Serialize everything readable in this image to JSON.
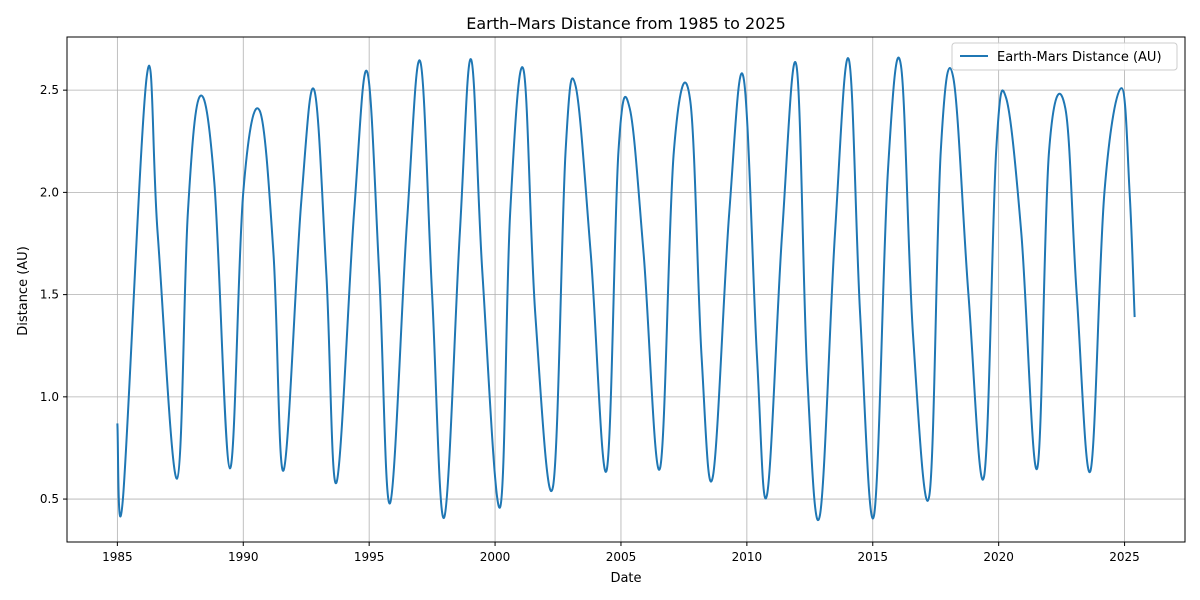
{
  "chart_data": {
    "type": "line",
    "title": "Earth–Mars Distance from 1985 to 2025",
    "xlabel": "Date",
    "ylabel": "Distance (AU)",
    "xlim": [
      1983.0,
      2027.4
    ],
    "ylim": [
      0.29,
      2.76
    ],
    "x_ticks": [
      1985,
      1990,
      1995,
      2000,
      2005,
      2010,
      2015,
      2020,
      2025
    ],
    "y_ticks": [
      0.5,
      1.0,
      1.5,
      2.0,
      2.5
    ],
    "x_tick_labels": [
      "1985",
      "1990",
      "1995",
      "2000",
      "2005",
      "2010",
      "2015",
      "2020",
      "2025"
    ],
    "y_tick_labels": [
      "0.5",
      "1.0",
      "1.5",
      "2.0",
      "2.5"
    ],
    "grid": true,
    "legend_position": "top-right",
    "series": [
      {
        "name": "Earth-Mars Distance (AU)",
        "color": "#1f77b4",
        "x": [
          1985.0,
          1985.22,
          1986.17,
          1986.6,
          1987.37,
          1987.8,
          1988.28,
          1988.85,
          1989.47,
          1990.0,
          1990.65,
          1991.2,
          1991.6,
          1992.3,
          1992.82,
          1993.3,
          1993.7,
          1994.4,
          1994.92,
          1995.4,
          1995.83,
          1996.5,
          1997.03,
          1997.5,
          1997.98,
          1998.6,
          1999.05,
          1999.5,
          2000.2,
          2000.6,
          2001.13,
          2001.6,
          2002.3,
          2002.8,
          2003.2,
          2003.8,
          2004.43,
          2004.9,
          2005.35,
          2005.9,
          2006.55,
          2007.1,
          2007.75,
          2008.2,
          2008.65,
          2009.3,
          2009.87,
          2010.4,
          2010.8,
          2011.4,
          2011.97,
          2012.4,
          2012.9,
          2013.5,
          2014.05,
          2014.5,
          2015.05,
          2015.6,
          2016.12,
          2016.6,
          2017.25,
          2017.7,
          2018.2,
          2018.8,
          2019.42,
          2019.9,
          2020.3,
          2020.9,
          2021.53,
          2022.0,
          2022.65,
          2023.1,
          2023.65,
          2024.2,
          2024.88,
          2025.2,
          2025.4
        ],
        "y": [
          0.87,
          0.5,
          2.57,
          1.8,
          0.6,
          1.9,
          2.47,
          2.05,
          0.65,
          2.0,
          2.4,
          1.7,
          0.64,
          1.95,
          2.5,
          1.6,
          0.58,
          1.9,
          2.59,
          1.6,
          0.48,
          1.85,
          2.64,
          1.5,
          0.41,
          1.8,
          2.65,
          1.6,
          0.46,
          1.9,
          2.6,
          1.4,
          0.56,
          2.2,
          2.52,
          1.7,
          0.64,
          2.2,
          2.41,
          1.7,
          0.65,
          2.2,
          2.45,
          1.2,
          0.61,
          1.9,
          2.56,
          1.2,
          0.52,
          1.8,
          2.62,
          1.1,
          0.42,
          1.8,
          2.65,
          1.4,
          0.42,
          2.1,
          2.62,
          1.3,
          0.52,
          2.2,
          2.56,
          1.5,
          0.61,
          2.2,
          2.46,
          1.8,
          0.65,
          2.2,
          2.41,
          1.5,
          0.64,
          2.0,
          2.51,
          2.0,
          1.39
        ]
      }
    ]
  }
}
